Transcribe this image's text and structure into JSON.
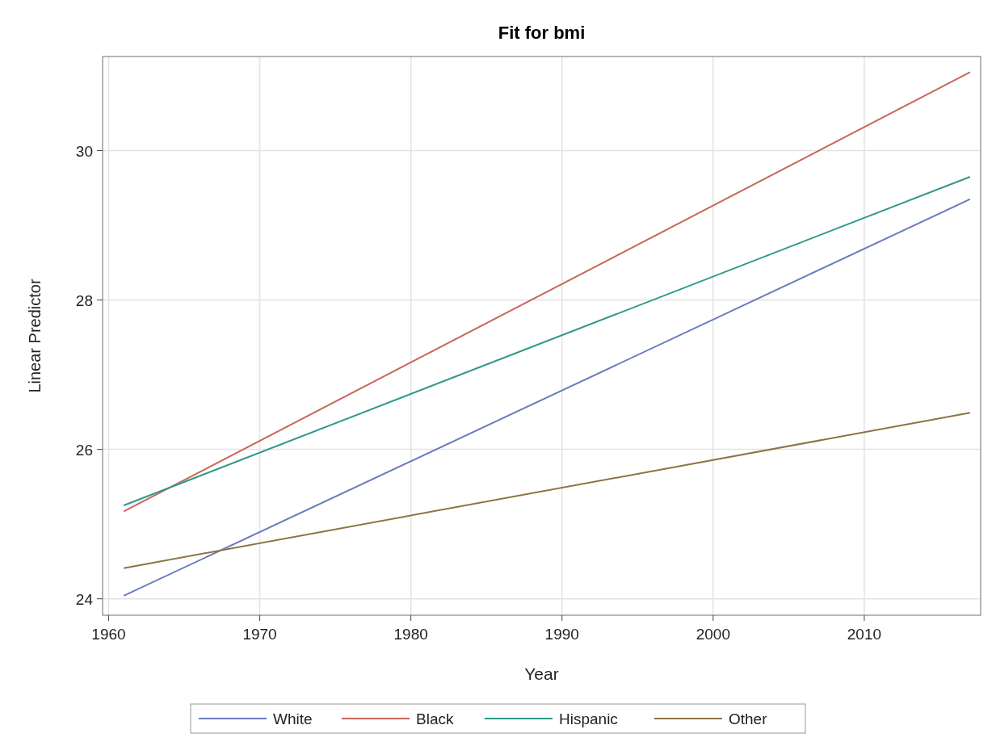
{
  "chart_data": {
    "type": "line",
    "title": "Fit for bmi",
    "xlabel": "Year",
    "ylabel": "Linear Predictor",
    "x": [
      1961,
      2017
    ],
    "series": [
      {
        "name": "White",
        "color": "#6a7bbf",
        "values": [
          24.04,
          29.35
        ]
      },
      {
        "name": "Black",
        "color": "#c8675a",
        "values": [
          25.17,
          31.05
        ]
      },
      {
        "name": "Hispanic",
        "color": "#2f9a8a",
        "values": [
          25.25,
          29.65
        ]
      },
      {
        "name": "Other",
        "color": "#8c7443",
        "values": [
          24.41,
          26.49
        ]
      }
    ],
    "xlim": [
      1959.6,
      2017.7
    ],
    "xticks": [
      1960,
      1970,
      1980,
      1990,
      2000,
      2010
    ],
    "ylim": [
      23.78,
      31.26
    ],
    "yticks": [
      24,
      26,
      28,
      30
    ],
    "grid": true,
    "legend": "bottom",
    "marker": "none",
    "line_style": "solid"
  }
}
